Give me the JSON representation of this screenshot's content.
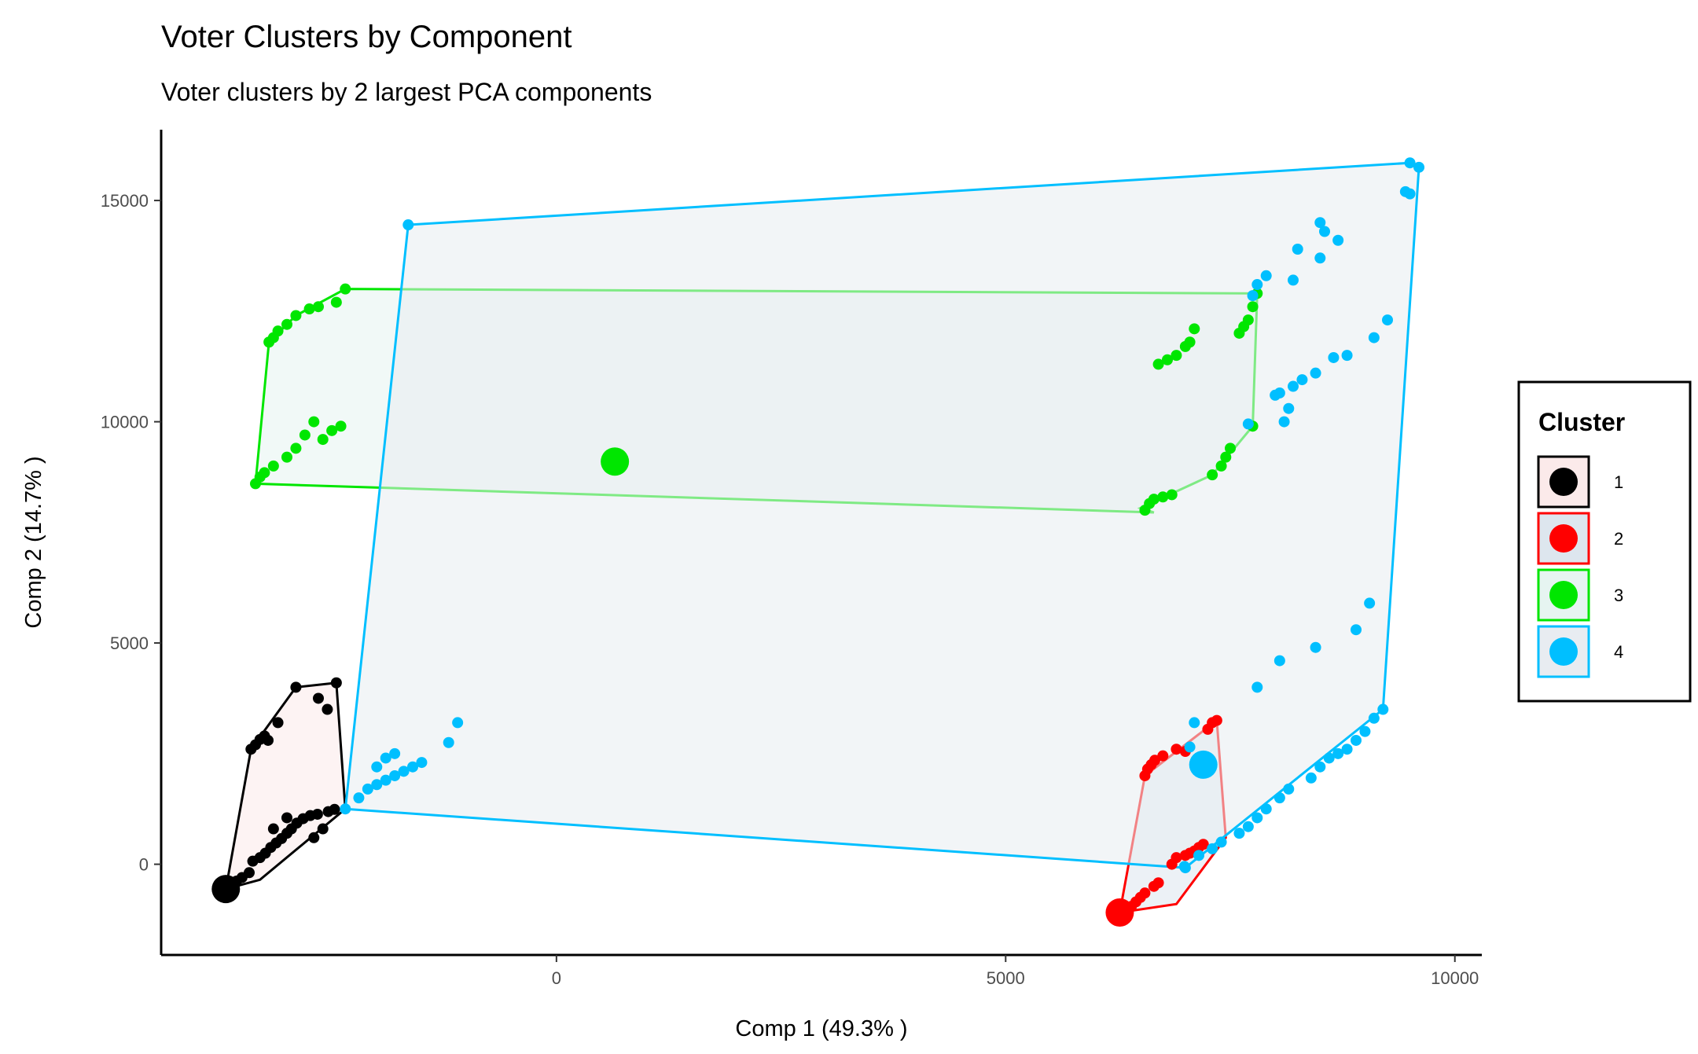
{
  "chart_data": {
    "type": "scatter",
    "title": "Voter Clusters by Component",
    "subtitle": "Voter clusters by 2 largest PCA components",
    "xlabel": "Comp 1 (49.3% )",
    "ylabel": "Comp 2 (14.7% )",
    "xlim": [
      -4400,
      10300
    ],
    "ylim": [
      -2050,
      16600
    ],
    "xticks": [
      0,
      5000,
      10000
    ],
    "yticks": [
      0,
      5000,
      10000,
      15000
    ],
    "grid": false,
    "legend": {
      "title": "Cluster",
      "placement": "right",
      "entries": [
        "1",
        "2",
        "3",
        "4"
      ]
    },
    "series": [
      {
        "name": "1",
        "color": "#000000",
        "fill": "#fbeaea",
        "medoid": [
          -3680,
          -560
        ],
        "hull": [
          [
            -3680,
            -560
          ],
          [
            -3400,
            2600
          ],
          [
            -2900,
            4000
          ],
          [
            -2450,
            4100
          ],
          [
            -2350,
            1250
          ],
          [
            -3300,
            -350
          ]
        ],
        "points": [
          [
            -3680,
            -560
          ],
          [
            -3650,
            -520
          ],
          [
            -3620,
            -460
          ],
          [
            -3560,
            -380
          ],
          [
            -3500,
            -300
          ],
          [
            -3420,
            -190
          ],
          [
            -3300,
            150
          ],
          [
            -3380,
            70
          ],
          [
            -3240,
            250
          ],
          [
            -3180,
            380
          ],
          [
            -3120,
            480
          ],
          [
            -3060,
            580
          ],
          [
            -3000,
            700
          ],
          [
            -2950,
            800
          ],
          [
            -2890,
            930
          ],
          [
            -2820,
            1030
          ],
          [
            -2740,
            1100
          ],
          [
            -2660,
            1130
          ],
          [
            -2540,
            1190
          ],
          [
            -2470,
            1240
          ],
          [
            -3400,
            2600
          ],
          [
            -3350,
            2700
          ],
          [
            -3300,
            2820
          ],
          [
            -3250,
            2900
          ],
          [
            -3210,
            2800
          ],
          [
            -3100,
            3200
          ],
          [
            -2900,
            4000
          ],
          [
            -2650,
            3750
          ],
          [
            -2550,
            3500
          ],
          [
            -2450,
            4100
          ],
          [
            -3150,
            800
          ],
          [
            -3000,
            1050
          ],
          [
            -2700,
            600
          ],
          [
            -2600,
            800
          ]
        ]
      },
      {
        "name": "2",
        "color": "#ff0000",
        "fill": "#dde6ee",
        "medoid": [
          6270,
          -1090
        ],
        "hull": [
          [
            6270,
            -1090
          ],
          [
            6550,
            2000
          ],
          [
            7350,
            3250
          ],
          [
            7450,
            600
          ],
          [
            6900,
            -900
          ]
        ],
        "points": [
          [
            6270,
            -1090
          ],
          [
            6320,
            -1020
          ],
          [
            6400,
            -950
          ],
          [
            6450,
            -850
          ],
          [
            6500,
            -750
          ],
          [
            6550,
            -650
          ],
          [
            6650,
            -500
          ],
          [
            6700,
            -420
          ],
          [
            6850,
            0
          ],
          [
            6900,
            150
          ],
          [
            7000,
            200
          ],
          [
            7050,
            250
          ],
          [
            7100,
            300
          ],
          [
            7150,
            380
          ],
          [
            7200,
            450
          ],
          [
            6550,
            2000
          ],
          [
            6580,
            2150
          ],
          [
            6620,
            2250
          ],
          [
            6660,
            2350
          ],
          [
            6750,
            2450
          ],
          [
            6900,
            2600
          ],
          [
            7000,
            2550
          ],
          [
            7250,
            3050
          ],
          [
            7300,
            3200
          ],
          [
            7350,
            3250
          ]
        ]
      },
      {
        "name": "3",
        "color": "#00e600",
        "fill": "#e6f4f1",
        "medoid": [
          650,
          9100
        ],
        "hull": [
          [
            -3350,
            8600
          ],
          [
            -3200,
            11800
          ],
          [
            -2900,
            12400
          ],
          [
            -2350,
            13000
          ],
          [
            7800,
            12900
          ],
          [
            7750,
            9900
          ],
          [
            7300,
            8800
          ],
          [
            6500,
            8050
          ],
          [
            6650,
            7950
          ]
        ],
        "points": [
          [
            -3350,
            8600
          ],
          [
            -3300,
            8750
          ],
          [
            -3250,
            8850
          ],
          [
            -3150,
            9000
          ],
          [
            -3000,
            9200
          ],
          [
            -2900,
            9400
          ],
          [
            -2800,
            9700
          ],
          [
            -2700,
            10000
          ],
          [
            -2600,
            9600
          ],
          [
            -2500,
            9800
          ],
          [
            -2400,
            9900
          ],
          [
            -3200,
            11800
          ],
          [
            -3150,
            11900
          ],
          [
            -3100,
            12050
          ],
          [
            -3000,
            12200
          ],
          [
            -2900,
            12400
          ],
          [
            -2750,
            12550
          ],
          [
            -2650,
            12600
          ],
          [
            -2450,
            12700
          ],
          [
            -2350,
            13000
          ],
          [
            6550,
            8000
          ],
          [
            6600,
            8150
          ],
          [
            6650,
            8250
          ],
          [
            6750,
            8300
          ],
          [
            6850,
            8350
          ],
          [
            6700,
            11300
          ],
          [
            6800,
            11400
          ],
          [
            6900,
            11500
          ],
          [
            7000,
            11700
          ],
          [
            7050,
            11800
          ],
          [
            7100,
            12100
          ],
          [
            7600,
            12000
          ],
          [
            7650,
            12150
          ],
          [
            7700,
            12300
          ],
          [
            7750,
            12600
          ],
          [
            7800,
            12900
          ],
          [
            7300,
            8800
          ],
          [
            7400,
            9000
          ],
          [
            7450,
            9200
          ],
          [
            7500,
            9400
          ],
          [
            7750,
            9900
          ]
        ]
      },
      {
        "name": "4",
        "color": "#00bfff",
        "fill": "#e8ecf1",
        "medoid": [
          7200,
          2250
        ],
        "hull": [
          [
            -2350,
            1250
          ],
          [
            -1650,
            14450
          ],
          [
            9500,
            15850
          ],
          [
            9600,
            15750
          ],
          [
            9200,
            3500
          ],
          [
            7000,
            -80
          ]
        ],
        "points": [
          [
            -1650,
            14450
          ],
          [
            9500,
            15850
          ],
          [
            9600,
            15750
          ],
          [
            9450,
            15200
          ],
          [
            9500,
            15150
          ],
          [
            8500,
            14500
          ],
          [
            8550,
            14300
          ],
          [
            8700,
            14100
          ],
          [
            8250,
            13900
          ],
          [
            8500,
            13700
          ],
          [
            8200,
            13200
          ],
          [
            7900,
            13300
          ],
          [
            7800,
            13100
          ],
          [
            7750,
            12850
          ],
          [
            9250,
            12300
          ],
          [
            9100,
            11900
          ],
          [
            8800,
            11500
          ],
          [
            8650,
            11450
          ],
          [
            8450,
            11100
          ],
          [
            8300,
            10950
          ],
          [
            8200,
            10800
          ],
          [
            8050,
            10650
          ],
          [
            8000,
            10600
          ],
          [
            8150,
            10300
          ],
          [
            8100,
            10000
          ],
          [
            7700,
            9950
          ],
          [
            7050,
            2650
          ],
          [
            7100,
            3200
          ],
          [
            7800,
            4000
          ],
          [
            8050,
            4600
          ],
          [
            8450,
            4900
          ],
          [
            8900,
            5300
          ],
          [
            9050,
            5900
          ],
          [
            9200,
            3500
          ],
          [
            9100,
            3300
          ],
          [
            9000,
            3000
          ],
          [
            8900,
            2800
          ],
          [
            8800,
            2600
          ],
          [
            8700,
            2500
          ],
          [
            8600,
            2400
          ],
          [
            8500,
            2200
          ],
          [
            8400,
            1950
          ],
          [
            8150,
            1700
          ],
          [
            8050,
            1500
          ],
          [
            7900,
            1250
          ],
          [
            7800,
            1050
          ],
          [
            7700,
            850
          ],
          [
            7600,
            700
          ],
          [
            7400,
            500
          ],
          [
            7300,
            350
          ],
          [
            7150,
            200
          ],
          [
            7000,
            -80
          ],
          [
            6990,
            -50
          ],
          [
            -2350,
            1250
          ],
          [
            -2200,
            1500
          ],
          [
            -2100,
            1700
          ],
          [
            -2000,
            1800
          ],
          [
            -1900,
            1900
          ],
          [
            -1800,
            2000
          ],
          [
            -1700,
            2100
          ],
          [
            -1600,
            2200
          ],
          [
            -1500,
            2300
          ],
          [
            -1200,
            2750
          ],
          [
            -1100,
            3200
          ],
          [
            -2000,
            2200
          ],
          [
            -1900,
            2400
          ],
          [
            -1800,
            2500
          ]
        ]
      }
    ]
  }
}
